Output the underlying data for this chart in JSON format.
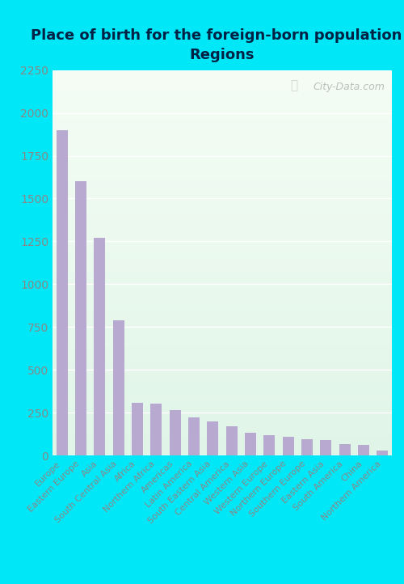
{
  "title": "Place of birth for the foreign-born population -\nRegions",
  "categories": [
    "Europe",
    "Eastern Europe",
    "Asia",
    "South Central Asia",
    "Africa",
    "Northern Africa",
    "Americas",
    "Latin America",
    "South Eastern Asia",
    "Central America",
    "Western Asia",
    "Western Europe",
    "Northern Europe",
    "Southern Europe",
    "Eastern Asia",
    "South America",
    "China",
    "Northern America"
  ],
  "values": [
    1900,
    1600,
    1270,
    790,
    310,
    305,
    265,
    225,
    200,
    170,
    135,
    120,
    110,
    95,
    90,
    65,
    60,
    30
  ],
  "bar_color": "#b8a9d0",
  "bg_outer": "#00e8f8",
  "bg_plot_top": "#f5fdf5",
  "bg_plot_bottom": "#e0f5e8",
  "ylim": [
    0,
    2250
  ],
  "yticks": [
    0,
    250,
    500,
    750,
    1000,
    1250,
    1500,
    1750,
    2000,
    2250
  ],
  "title_fontsize": 13,
  "tick_label_fontsize": 8,
  "ytick_label_fontsize": 10,
  "watermark": "City-Data.com",
  "title_color": "#002244",
  "ytick_color": "#888888",
  "xtick_color": "#888888"
}
